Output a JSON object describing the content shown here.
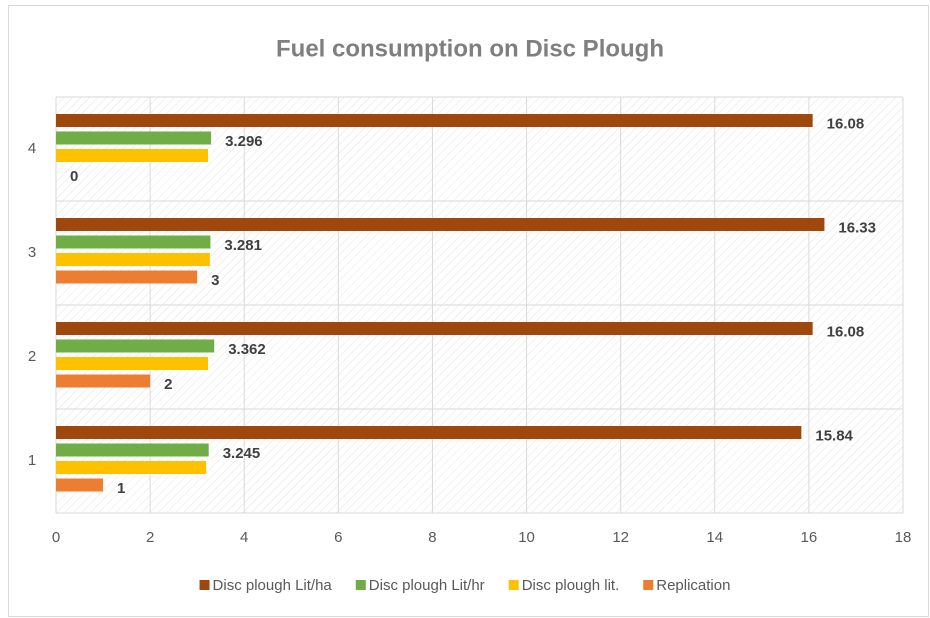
{
  "chart_data": {
    "type": "barh",
    "title": "Fuel consumption on Disc Plough",
    "categories": [
      "1",
      "2",
      "3",
      "4"
    ],
    "series": [
      {
        "name": "Disc plough Lit/ha",
        "color": "#9e480e",
        "values": [
          15.84,
          16.08,
          16.33,
          16.08
        ],
        "labels": true
      },
      {
        "name": "Disc plough Lit/hr",
        "color": "#70ad47",
        "values": [
          3.245,
          3.362,
          3.281,
          3.296
        ],
        "labels": true
      },
      {
        "name": "Disc plough lit.",
        "color": "#ffc000",
        "values": [
          3.19,
          3.23,
          3.27,
          3.23
        ],
        "labels": false
      },
      {
        "name": "Replication",
        "color": "#ed7d31",
        "values": [
          1,
          2,
          3,
          0
        ],
        "labels": true
      }
    ],
    "xlim": [
      0,
      18
    ],
    "xticks": [
      0,
      2,
      4,
      6,
      8,
      10,
      12,
      14,
      16,
      18
    ],
    "grid": true,
    "legend": "bottom"
  }
}
